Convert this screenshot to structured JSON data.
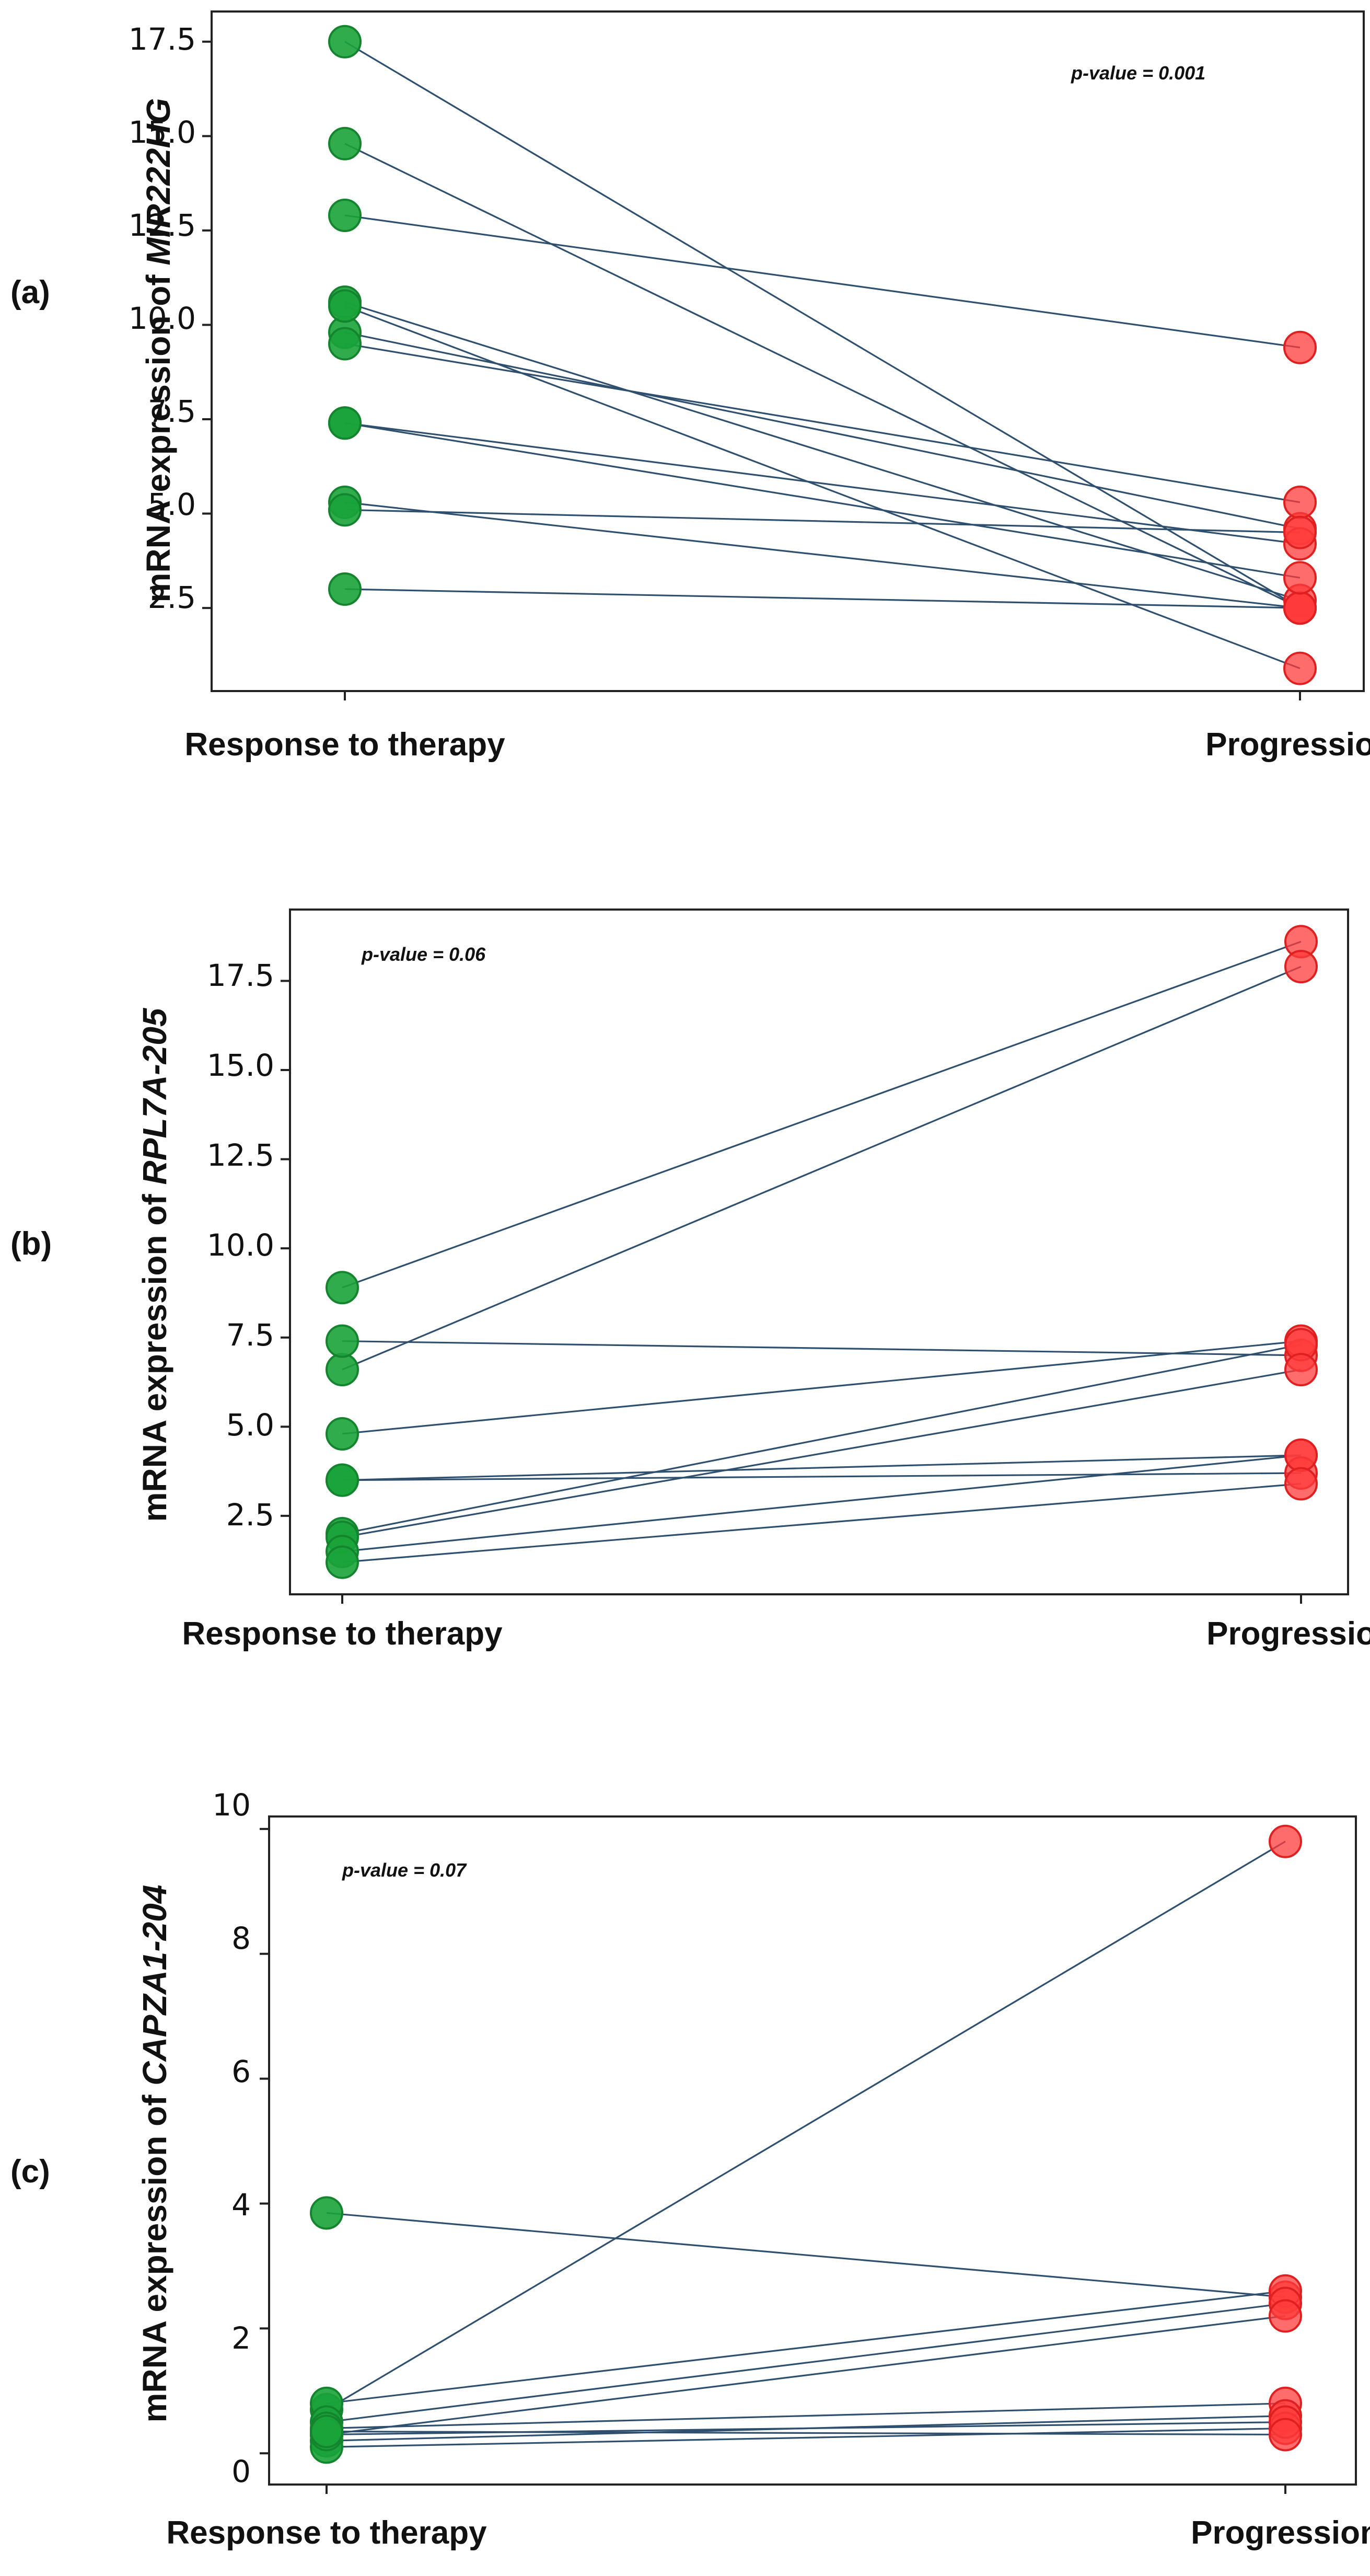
{
  "chart_data": [
    {
      "type": "line",
      "panel_label": "(a)",
      "ylabel_prefix": "mRNA expression of ",
      "ylabel_gene": "MIR222HG",
      "annotation": "p-value = 0.001",
      "categories": [
        "Response to therapy",
        "Progression"
      ],
      "yticks": [
        "2.5",
        "5.0",
        "7.5",
        "10.0",
        "12.5",
        "15.0",
        "17.5"
      ],
      "tick_values": [
        2.5,
        5.0,
        7.5,
        10.0,
        12.5,
        15.0,
        17.5
      ],
      "ylim": [
        0.3,
        18.3
      ],
      "pairs": [
        [
          17.5,
          2.5
        ],
        [
          14.8,
          2.5
        ],
        [
          12.9,
          9.4
        ],
        [
          10.6,
          2.7
        ],
        [
          9.8,
          4.6
        ],
        [
          9.5,
          5.3
        ],
        [
          7.4,
          4.2
        ],
        [
          5.3,
          2.5
        ],
        [
          5.1,
          4.5
        ],
        [
          3.0,
          2.5
        ],
        [
          10.5,
          0.9
        ],
        [
          7.4,
          3.3
        ]
      ]
    },
    {
      "type": "line",
      "panel_label": "(b)",
      "ylabel_prefix": "mRNA expression of ",
      "ylabel_gene": "RPL7A-205",
      "annotation": "p-value = 0.06",
      "categories": [
        "Response to therapy",
        "Progression"
      ],
      "yticks": [
        "2.5",
        "5.0",
        "7.5",
        "10.0",
        "12.5",
        "15.0",
        "17.5"
      ],
      "tick_values": [
        2.5,
        5.0,
        7.5,
        10.0,
        12.5,
        15.0,
        17.5
      ],
      "ylim": [
        0.3,
        19.5
      ],
      "pairs": [
        [
          8.9,
          18.6
        ],
        [
          6.6,
          17.9
        ],
        [
          7.4,
          7.0
        ],
        [
          4.8,
          7.4
        ],
        [
          3.5,
          4.2
        ],
        [
          3.5,
          3.7
        ],
        [
          2.0,
          7.3
        ],
        [
          1.9,
          6.6
        ],
        [
          1.5,
          4.2
        ],
        [
          1.2,
          3.4
        ]
      ]
    },
    {
      "type": "line",
      "panel_label": "(c)",
      "ylabel_prefix": "mRNA expression of ",
      "ylabel_gene": "CAPZA1-204",
      "annotation": "p-value = 0.07",
      "categories": [
        "Response to therapy",
        "Progression"
      ],
      "yticks": [
        "0",
        "2",
        "4",
        "6",
        "8",
        "10"
      ],
      "tick_values": [
        0,
        2,
        4,
        6,
        8,
        10
      ],
      "ylim": [
        -0.5,
        10.2
      ],
      "pairs": [
        [
          3.85,
          2.5
        ],
        [
          0.7,
          9.8
        ],
        [
          0.8,
          2.6
        ],
        [
          0.5,
          2.4
        ],
        [
          0.3,
          2.2
        ],
        [
          0.4,
          0.8
        ],
        [
          0.2,
          0.6
        ],
        [
          0.1,
          0.4
        ],
        [
          0.3,
          0.5
        ],
        [
          0.35,
          0.3
        ]
      ]
    }
  ]
}
